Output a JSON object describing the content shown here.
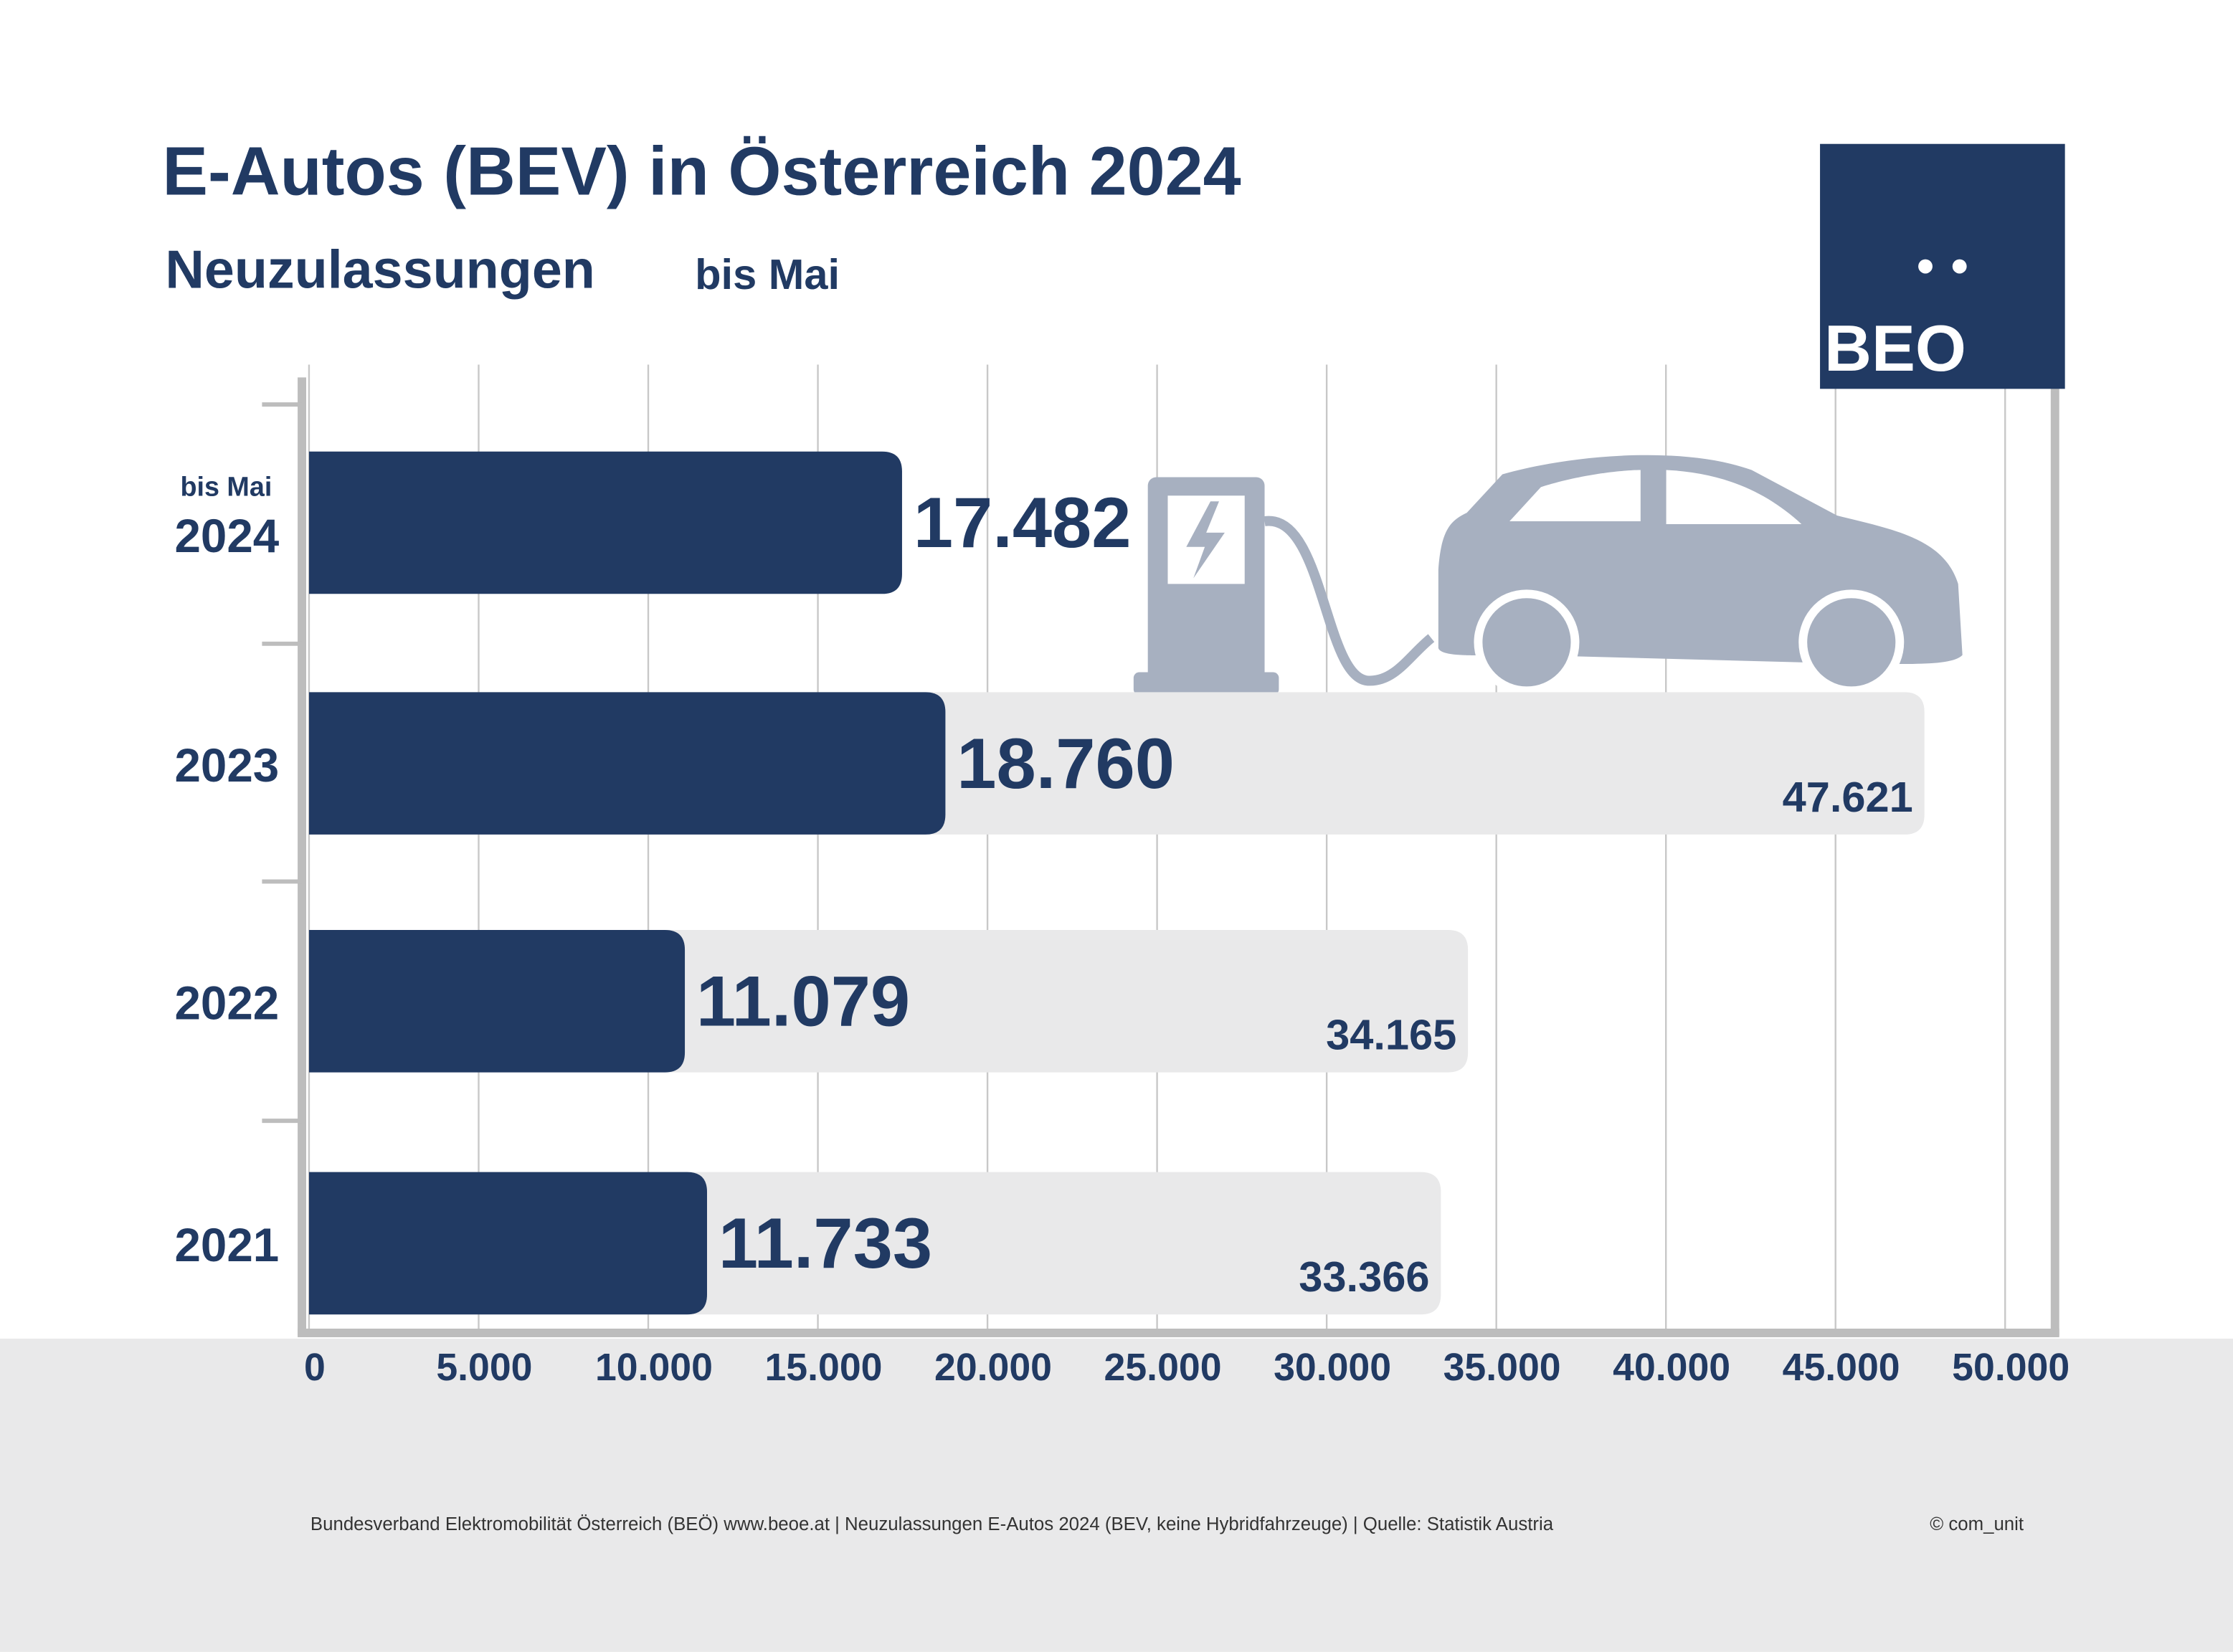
{
  "chart_data": {
    "type": "barh",
    "title": "E-Autos (BEV) in Österreich 2024",
    "subtitle": "Neuzulassungen",
    "subtitle_note": "bis Mai",
    "category_note": "bis Mai",
    "categories": [
      "2024",
      "2023",
      "2022",
      "2021"
    ],
    "series": [
      {
        "color": "#e9e9ea",
        "values": [
          null,
          47621,
          34165,
          33366
        ],
        "value_labels": [
          null,
          "47.621",
          "34.165",
          "33.366"
        ]
      },
      {
        "color": "#213a63",
        "values": [
          17482,
          18760,
          11079,
          11733
        ],
        "value_labels": [
          "17.482",
          "18.760",
          "11.079",
          "11.733"
        ]
      }
    ],
    "xlim": [
      0,
      50000
    ],
    "xticks": [
      0,
      {
        "value": 5000,
        "label": "5.000"
      },
      {
        "value": 10000,
        "label": "10.000"
      },
      {
        "value": 15000,
        "label": "15.000"
      },
      {
        "value": 20000,
        "label": "20.000"
      },
      {
        "value": 25000,
        "label": "25.000"
      },
      {
        "value": 30000,
        "label": "30.000"
      },
      {
        "value": 35000,
        "label": "35.000"
      },
      {
        "value": 40000,
        "label": "40.000"
      },
      {
        "value": 45000,
        "label": "45.000"
      },
      {
        "value": 50000,
        "label": "50.000"
      }
    ],
    "grid": true,
    "logo": "BEO",
    "footer": "Bundesverband Elektromobilität Österreich (BEÖ) www.beoe.at | Neuzulassungen E-Autos 2024 (BEV, keine Hybridfahrzeuge) | Quelle: Statistik Austria",
    "copyright": "© com_unit"
  }
}
